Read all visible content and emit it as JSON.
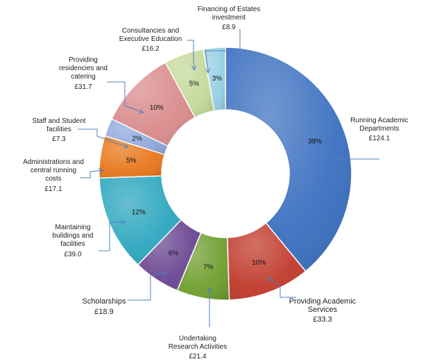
{
  "chart_data": {
    "type": "pie",
    "donut": true,
    "title": "",
    "slices": [
      {
        "label": [
          "Running Academic",
          "Departments"
        ],
        "value": 124.1,
        "value_text": "£124.1",
        "pct_text": "39%",
        "color": "#3a6fc0"
      },
      {
        "label": [
          "Providing Academic",
          "Services"
        ],
        "value": 33.3,
        "value_text": "£33.3",
        "pct_text": "10%",
        "color": "#c0392b"
      },
      {
        "label": [
          "Undertaking",
          "Research Activities"
        ],
        "value": 21.4,
        "value_text": "£21.4",
        "pct_text": "7%",
        "color": "#6f9e2e"
      },
      {
        "label": [
          "Scholarships"
        ],
        "value": 18.9,
        "value_text": "£18.9",
        "pct_text": "6%",
        "color": "#6a4591"
      },
      {
        "label": [
          "Maintaining",
          "buildings and",
          "facilities"
        ],
        "value": 39.0,
        "value_text": "£39.0",
        "pct_text": "12%",
        "color": "#2ba6be"
      },
      {
        "label": [
          "Administrations and",
          "central running",
          "costs"
        ],
        "value": 17.1,
        "value_text": "£17.1",
        "pct_text": "5%",
        "color": "#e8761a"
      },
      {
        "label": [
          "Staff and Student",
          "facilities"
        ],
        "value": 7.3,
        "value_text": "£7.3",
        "pct_text": "2%",
        "color": "#8fa8dc"
      },
      {
        "label": [
          "Providing",
          "residencies and",
          "catering"
        ],
        "value": 31.7,
        "value_text": "£31.7",
        "pct_text": "10%",
        "color": "#d98a8a"
      },
      {
        "label": [
          "Consultancies and",
          "Executive Education"
        ],
        "value": 16.2,
        "value_text": "£16.2",
        "pct_text": "5%",
        "color": "#c4d99a"
      },
      {
        "label": [
          "Financing of Estates",
          "investment"
        ],
        "value": 8.9,
        "value_text": "£8.9",
        "pct_text": "3%",
        "color": "#94cfe3"
      }
    ]
  }
}
